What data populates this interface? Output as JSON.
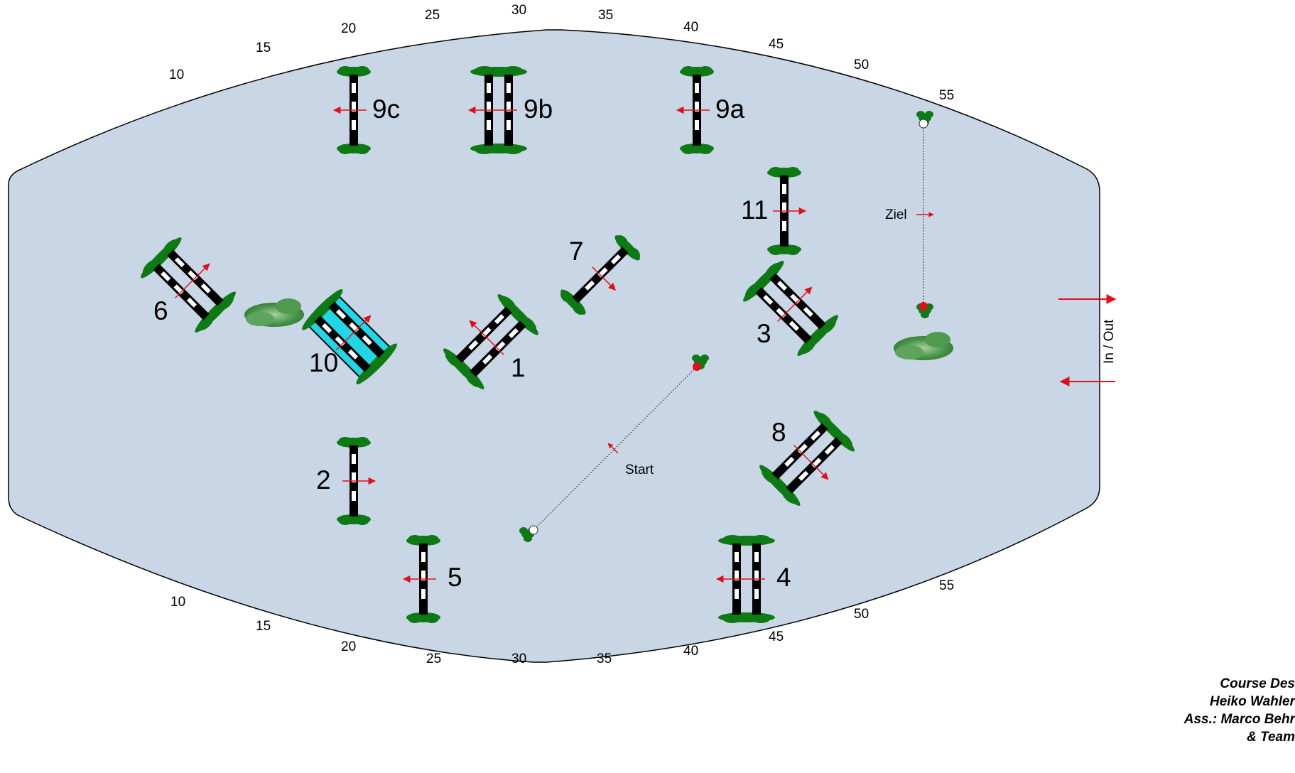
{
  "arena": {
    "fill": "#c9d6e5",
    "top_scale": [
      "10",
      "15",
      "20",
      "25",
      "30",
      "35",
      "40",
      "45",
      "50",
      "55"
    ],
    "bottom_scale": [
      "10",
      "15",
      "20",
      "25",
      "30",
      "35",
      "40",
      "45",
      "50",
      "55"
    ]
  },
  "fences": [
    {
      "id": "1",
      "label": "1",
      "kind": "oxer"
    },
    {
      "id": "2",
      "label": "2",
      "kind": "vertical"
    },
    {
      "id": "3",
      "label": "3",
      "kind": "oxer"
    },
    {
      "id": "4",
      "label": "4",
      "kind": "oxer"
    },
    {
      "id": "5",
      "label": "5",
      "kind": "vertical"
    },
    {
      "id": "6",
      "label": "6",
      "kind": "oxer"
    },
    {
      "id": "7",
      "label": "7",
      "kind": "vertical"
    },
    {
      "id": "8",
      "label": "8",
      "kind": "oxer"
    },
    {
      "id": "9a",
      "label": "9a",
      "kind": "vertical"
    },
    {
      "id": "9b",
      "label": "9b",
      "kind": "oxer"
    },
    {
      "id": "9c",
      "label": "9c",
      "kind": "vertical"
    },
    {
      "id": "10",
      "label": "10",
      "kind": "water-oxer"
    },
    {
      "id": "11",
      "label": "11",
      "kind": "vertical"
    }
  ],
  "start_label": "Start",
  "finish_label": "Ziel",
  "gate_label": "In / Out",
  "credits": [
    "Course Des",
    "Heiko Wahler",
    "Ass.: Marco Behr",
    "& Team"
  ],
  "colors": {
    "arrow": "#e0101a",
    "rail_dark": "#000000",
    "rail_light": "#ffffff",
    "water": "#22d6e6",
    "bush": "#0d7a14",
    "flag_red": "#e0101a"
  }
}
